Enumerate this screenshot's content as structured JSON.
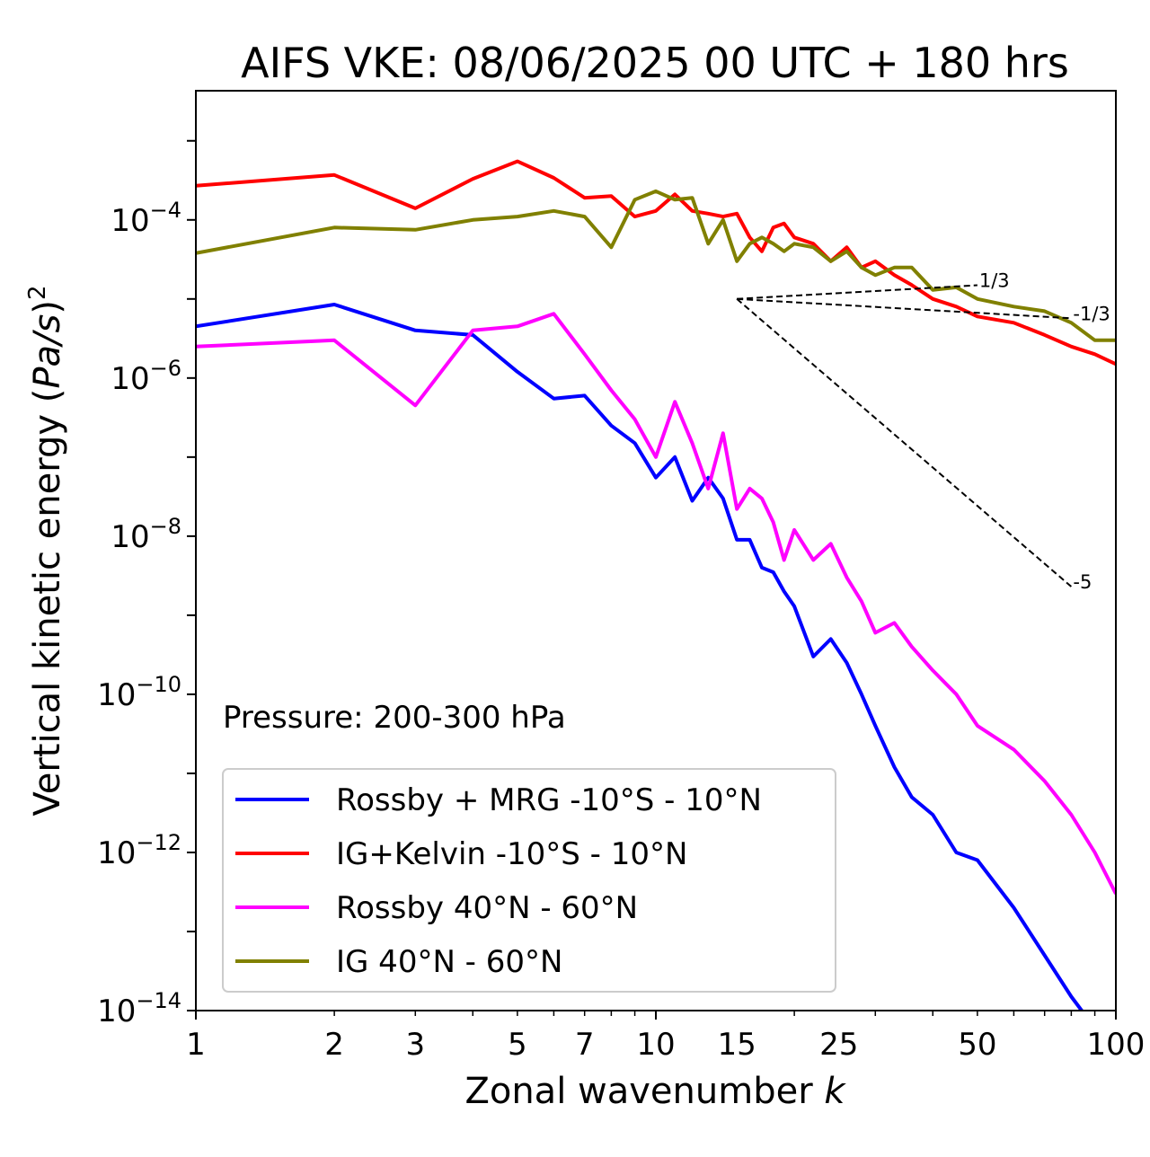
{
  "chart_data": {
    "type": "line",
    "title": "AIFS VKE: 08/06/2025 00 UTC + 180 hrs",
    "xlabel": "Zonal wavenumber k",
    "ylabel": "Vertical kinetic energy (Pa/s)2",
    "x_scale": "log",
    "y_scale": "log",
    "xlim": [
      1,
      100
    ],
    "ylim": [
      1e-14,
      0.0043
    ],
    "x_ticks": [
      1,
      2,
      3,
      5,
      7,
      10,
      15,
      25,
      50,
      100
    ],
    "x_tick_labels": [
      "1",
      "2",
      "3",
      "5",
      "7",
      "10",
      "15",
      "25",
      "50",
      "100"
    ],
    "y_ticks": [
      -14,
      -12,
      -10,
      -8,
      -6,
      -4
    ],
    "y_tick_labels": [
      {
        "base": "10",
        "exp": "−14"
      },
      {
        "base": "10",
        "exp": "−12"
      },
      {
        "base": "10",
        "exp": "−10"
      },
      {
        "base": "10",
        "exp": "−8"
      },
      {
        "base": "10",
        "exp": "−6"
      },
      {
        "base": "10",
        "exp": "−4"
      }
    ],
    "annotation": "Pressure: 200-300 hPa",
    "legend_position": "lower-left",
    "grid": false,
    "series": [
      {
        "name": "Rossby + MRG -10°S - 10°N",
        "color": "#0000ff",
        "x": [
          1,
          2,
          3,
          4,
          5,
          6,
          7,
          8,
          9,
          10,
          11,
          12,
          13,
          14,
          15,
          16,
          17,
          18,
          19,
          20,
          22,
          24,
          26,
          28,
          30,
          33,
          36,
          40,
          45,
          50,
          60,
          70,
          80,
          90,
          100
        ],
        "y": [
          4.5e-06,
          8.5e-06,
          4e-06,
          3.5e-06,
          1.2e-06,
          5.5e-07,
          6e-07,
          2.5e-07,
          1.5e-07,
          5.5e-08,
          1e-07,
          2.8e-08,
          5.5e-08,
          3e-08,
          9e-09,
          9e-09,
          4e-09,
          3.5e-09,
          2e-09,
          1.3e-09,
          3e-10,
          5e-10,
          2.5e-10,
          1e-10,
          4e-11,
          1.2e-11,
          5e-12,
          3e-12,
          1e-12,
          8e-13,
          2e-13,
          5e-14,
          1.5e-14,
          6e-15,
          2e-15
        ]
      },
      {
        "name": "IG+Kelvin -10°S - 10°N",
        "color": "#ff0000",
        "x": [
          1,
          2,
          3,
          4,
          5,
          6,
          7,
          8,
          9,
          10,
          11,
          12,
          13,
          14,
          15,
          16,
          17,
          18,
          19,
          20,
          22,
          24,
          26,
          28,
          30,
          33,
          36,
          40,
          45,
          50,
          60,
          70,
          80,
          90,
          100
        ],
        "y": [
          0.00027,
          0.00037,
          0.00014,
          0.00033,
          0.00055,
          0.00034,
          0.00019,
          0.0002,
          0.00011,
          0.00013,
          0.00021,
          0.00013,
          0.00012,
          0.00011,
          0.00012,
          6e-05,
          4e-05,
          8e-05,
          9e-05,
          6e-05,
          5e-05,
          3e-05,
          4.5e-05,
          2.5e-05,
          3e-05,
          2e-05,
          1.5e-05,
          1e-05,
          8e-06,
          6e-06,
          5e-06,
          3.5e-06,
          2.5e-06,
          2e-06,
          1.5e-06
        ]
      },
      {
        "name": "Rossby 40°N - 60°N",
        "color": "#ff00ff",
        "x": [
          1,
          2,
          3,
          4,
          5,
          6,
          7,
          8,
          9,
          10,
          11,
          12,
          13,
          14,
          15,
          16,
          17,
          18,
          19,
          20,
          22,
          24,
          26,
          28,
          30,
          33,
          36,
          40,
          45,
          50,
          60,
          70,
          80,
          90,
          100
        ],
        "y": [
          2.5e-06,
          3e-06,
          4.5e-07,
          4e-06,
          4.5e-06,
          6.5e-06,
          2e-06,
          7e-07,
          3e-07,
          1e-07,
          5e-07,
          1.5e-07,
          4e-08,
          2e-07,
          2.2e-08,
          4e-08,
          3e-08,
          1.5e-08,
          5e-09,
          1.2e-08,
          5e-09,
          8e-09,
          3e-09,
          1.5e-09,
          6e-10,
          8e-10,
          4e-10,
          2e-10,
          1e-10,
          4e-11,
          2e-11,
          8e-12,
          3e-12,
          1e-12,
          3e-13
        ]
      },
      {
        "name": "IG 40°N - 60°N",
        "color": "#808000",
        "x": [
          1,
          2,
          3,
          4,
          5,
          6,
          7,
          8,
          9,
          10,
          11,
          12,
          13,
          14,
          15,
          16,
          17,
          18,
          19,
          20,
          22,
          24,
          26,
          28,
          30,
          33,
          36,
          40,
          45,
          50,
          60,
          70,
          80,
          90,
          100
        ],
        "y": [
          3.8e-05,
          8e-05,
          7.5e-05,
          0.0001,
          0.00011,
          0.00013,
          0.00011,
          4.5e-05,
          0.00018,
          0.00023,
          0.00018,
          0.00019,
          5e-05,
          0.0001,
          3e-05,
          5e-05,
          6e-05,
          5e-05,
          4e-05,
          5e-05,
          4.5e-05,
          3e-05,
          4e-05,
          2.5e-05,
          2e-05,
          2.5e-05,
          2.5e-05,
          1.3e-05,
          1.4e-05,
          1e-05,
          8e-06,
          7e-06,
          5e-06,
          3e-06,
          3e-06
        ]
      }
    ],
    "reference_lines": [
      {
        "label": "-1/3",
        "x": [
          15,
          80
        ],
        "y": [
          1e-05,
          5.7e-06
        ]
      },
      {
        "label": "1/3",
        "x": [
          15,
          50
        ],
        "y": [
          1e-05,
          1.49e-05
        ]
      },
      {
        "label": "-5",
        "x": [
          15,
          80
        ],
        "y": [
          1e-05,
          2.3e-09
        ]
      }
    ]
  }
}
